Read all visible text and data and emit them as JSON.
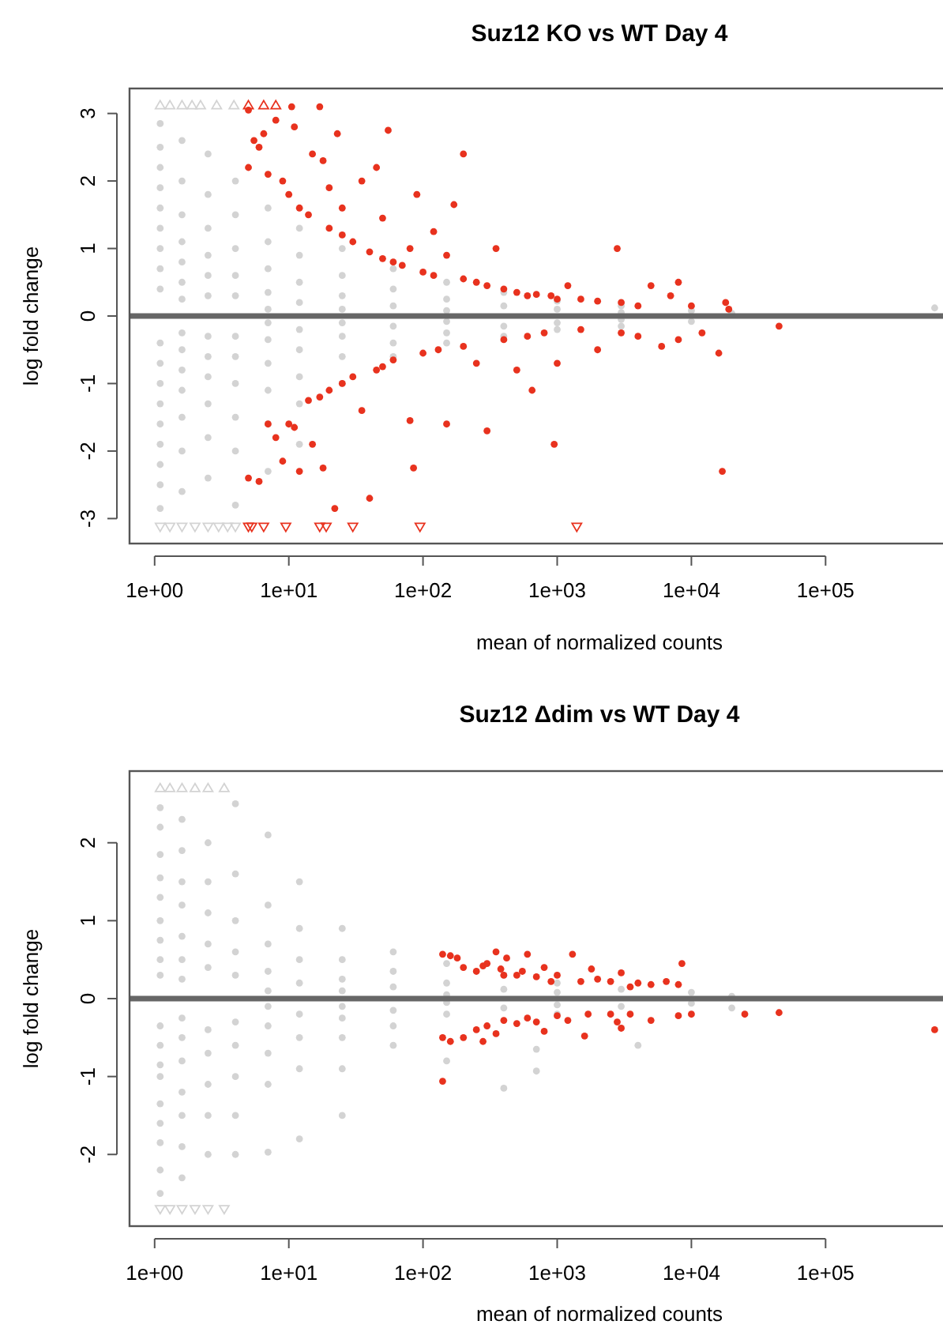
{
  "chart_data": [
    {
      "type": "scatter",
      "title": "Suz12 KO vs WT Day 4",
      "xlabel": "mean of normalized counts",
      "ylabel": "log fold change",
      "log": "x",
      "xlim": [
        0.65,
        750000
      ],
      "xticks": [
        {
          "value": 1,
          "label": "1e+00"
        },
        {
          "value": 10,
          "label": "1e+01"
        },
        {
          "value": 100,
          "label": "1e+02"
        },
        {
          "value": 1000,
          "label": "1e+03"
        },
        {
          "value": 10000,
          "label": "1e+04"
        },
        {
          "value": 100000,
          "label": "1e+05"
        }
      ],
      "ylim": [
        -3.37,
        3.37
      ],
      "yticks": [
        -3,
        -2,
        -1,
        0,
        1,
        2,
        3
      ],
      "marker": "circle",
      "ref_lines": [
        {
          "axis": "y",
          "value": 0,
          "color": "#666666"
        }
      ],
      "series": [
        {
          "color": "#d3d3d3",
          "x": [
            1.1,
            1.1,
            1.1,
            1.1,
            1.1,
            1.1,
            1.1,
            1.1,
            1.1,
            1.1,
            1.1,
            1.1,
            1.1,
            1.1,
            1.1,
            1.1,
            1.1,
            1.1,
            1.6,
            1.6,
            1.6,
            1.6,
            1.6,
            1.6,
            1.6,
            1.6,
            1.6,
            1.6,
            1.6,
            1.6,
            1.6,
            1.6,
            2.5,
            2.5,
            2.5,
            2.5,
            2.5,
            2.5,
            2.5,
            2.5,
            2.5,
            2.5,
            2.5,
            2.5,
            4,
            4,
            4,
            4,
            4,
            4,
            4,
            4,
            4,
            4,
            4,
            7,
            7,
            7,
            7,
            7,
            7,
            7,
            7,
            7,
            7,
            7,
            12,
            12,
            12,
            12,
            12,
            12,
            12,
            12,
            12,
            25,
            25,
            25,
            25,
            25,
            25,
            25,
            25,
            60,
            60,
            60,
            60,
            60,
            60,
            150,
            150,
            150,
            150,
            150,
            150,
            400,
            400,
            400,
            400,
            1000,
            1000,
            1000,
            1000,
            3000,
            3000,
            3000,
            3000,
            10000,
            10000,
            20000,
            650000
          ],
          "values": [
            2.85,
            2.5,
            2.2,
            1.9,
            1.6,
            1.3,
            1.0,
            0.7,
            0.4,
            -0.4,
            -0.7,
            -1.0,
            -1.3,
            -1.6,
            -1.9,
            -2.2,
            -2.5,
            -2.85,
            2.6,
            2.0,
            1.5,
            1.1,
            0.8,
            0.5,
            0.25,
            -0.25,
            -0.5,
            -0.8,
            -1.1,
            -1.5,
            -2.0,
            -2.6,
            2.4,
            1.8,
            1.3,
            0.9,
            0.6,
            0.3,
            -0.3,
            -0.6,
            -0.9,
            -1.3,
            -1.8,
            -2.4,
            2.0,
            1.5,
            1.0,
            0.6,
            0.3,
            -0.3,
            -0.6,
            -1.0,
            -1.5,
            -2.0,
            -2.8,
            1.6,
            1.1,
            0.7,
            0.35,
            0.1,
            -0.1,
            -0.35,
            -0.7,
            -1.1,
            -1.6,
            -2.3,
            1.3,
            0.9,
            0.5,
            0.2,
            -0.2,
            -0.5,
            -0.9,
            -1.3,
            -1.9,
            1.0,
            0.6,
            0.3,
            0.1,
            -0.1,
            -0.3,
            -0.6,
            -1.0,
            0.7,
            0.4,
            0.15,
            -0.15,
            -0.4,
            -0.6,
            0.5,
            0.25,
            0.08,
            -0.08,
            -0.25,
            -0.4,
            0.35,
            0.15,
            -0.15,
            -0.3,
            0.22,
            0.1,
            -0.1,
            -0.2,
            0.15,
            0.05,
            -0.05,
            -0.15,
            0.08,
            -0.08,
            0.04,
            0.12
          ]
        },
        {
          "color": "#d3d3d3",
          "marker": "triangle",
          "x": [
            1.1,
            1.3,
            1.6,
            1.9,
            2.2,
            2.9,
            3.9,
            1.1,
            1.3,
            1.6,
            2,
            2.5,
            3,
            3.5,
            4
          ],
          "values": [
            3.12,
            3.12,
            3.12,
            3.12,
            3.12,
            3.12,
            3.12,
            -3.12,
            -3.12,
            -3.12,
            -3.12,
            -3.12,
            -3.12,
            -3.12,
            -3.12
          ]
        },
        {
          "color": "#e8321e",
          "x": [
            5,
            5.5,
            6,
            6.5,
            7,
            8,
            9,
            10,
            11,
            12,
            14,
            15,
            18,
            20,
            23,
            25,
            30,
            35,
            40,
            45,
            50,
            55,
            60,
            70,
            80,
            90,
            100,
            120,
            150,
            170,
            200,
            200,
            250,
            300,
            350,
            400,
            500,
            600,
            700,
            900,
            1000,
            1200,
            1500,
            2000,
            2800,
            3000,
            4000,
            5000,
            7000,
            8000,
            10000,
            18000,
            25,
            50,
            120,
            20,
            5,
            10.5,
            17,
            5,
            6,
            7,
            8,
            9,
            10,
            11,
            12,
            14,
            15,
            17,
            18,
            20,
            22,
            25,
            30,
            35,
            40,
            45,
            50,
            60,
            80,
            85,
            100,
            130,
            150,
            200,
            250,
            300,
            400,
            500,
            600,
            650,
            800,
            950,
            1000,
            1500,
            2000,
            3000,
            4000,
            6000,
            8000,
            12000,
            16000,
            17000,
            45000,
            19000
          ],
          "values": [
            2.2,
            2.6,
            2.5,
            2.7,
            2.1,
            2.9,
            2.0,
            1.8,
            2.8,
            1.6,
            1.5,
            2.4,
            2.3,
            1.3,
            2.7,
            1.2,
            1.1,
            2.0,
            0.95,
            2.2,
            0.85,
            2.75,
            0.8,
            0.75,
            1.0,
            1.8,
            0.65,
            0.6,
            0.9,
            1.65,
            2.4,
            0.55,
            0.5,
            0.45,
            1.0,
            0.4,
            0.35,
            0.3,
            0.32,
            0.3,
            0.25,
            0.45,
            0.25,
            0.22,
            1.0,
            0.2,
            0.15,
            0.45,
            0.3,
            0.5,
            0.15,
            0.2,
            1.6,
            1.45,
            1.25,
            1.9,
            3.05,
            3.1,
            3.1,
            -2.4,
            -2.45,
            -1.6,
            -1.8,
            -2.15,
            -1.6,
            -1.65,
            -2.3,
            -1.25,
            -1.9,
            -1.2,
            -2.25,
            -1.1,
            -2.85,
            -1.0,
            -0.9,
            -1.4,
            -2.7,
            -0.8,
            -0.75,
            -0.65,
            -1.55,
            -2.25,
            -0.55,
            -0.5,
            -1.6,
            -0.45,
            -0.7,
            -1.7,
            -0.35,
            -0.8,
            -0.3,
            -1.1,
            -0.25,
            -1.9,
            -0.7,
            -0.2,
            -0.5,
            -0.25,
            -0.3,
            -0.45,
            -0.35,
            -0.25,
            -0.55,
            -2.3,
            -0.15,
            0.1
          ]
        },
        {
          "color": "#e8321e",
          "marker": "triangle",
          "x": [
            5,
            6.5,
            8,
            5,
            5.3,
            6.5,
            9.5,
            17,
            19,
            30,
            95,
            1400
          ],
          "values": [
            3.12,
            3.12,
            3.12,
            -3.12,
            -3.12,
            -3.12,
            -3.12,
            -3.12,
            -3.12,
            -3.12,
            -3.12,
            -3.12
          ]
        }
      ]
    },
    {
      "type": "scatter",
      "title": "Suz12 Δdim vs WT Day 4",
      "xlabel": "mean of normalized counts",
      "ylabel": "log fold change",
      "log": "x",
      "xlim": [
        0.65,
        750000
      ],
      "xticks": [
        {
          "value": 1,
          "label": "1e+00"
        },
        {
          "value": 10,
          "label": "1e+01"
        },
        {
          "value": 100,
          "label": "1e+02"
        },
        {
          "value": 1000,
          "label": "1e+03"
        },
        {
          "value": 10000,
          "label": "1e+04"
        },
        {
          "value": 100000,
          "label": "1e+05"
        }
      ],
      "ylim": [
        -2.92,
        2.92
      ],
      "yticks": [
        -2,
        -1,
        0,
        1,
        2
      ],
      "marker": "circle",
      "ref_lines": [
        {
          "axis": "y",
          "value": 0,
          "color": "#666666"
        }
      ],
      "series": [
        {
          "color": "#d3d3d3",
          "x": [
            1.1,
            1.1,
            1.1,
            1.1,
            1.1,
            1.1,
            1.1,
            1.1,
            1.1,
            1.1,
            1.1,
            1.1,
            1.1,
            1.1,
            1.1,
            1.1,
            1.1,
            1.1,
            1.6,
            1.6,
            1.6,
            1.6,
            1.6,
            1.6,
            1.6,
            1.6,
            1.6,
            1.6,
            1.6,
            1.6,
            1.6,
            1.6,
            2.5,
            2.5,
            2.5,
            2.5,
            2.5,
            2.5,
            2.5,
            2.5,
            2.5,
            2.5,
            4,
            4,
            4,
            4,
            4,
            4,
            4,
            4,
            4,
            4,
            7,
            7,
            7,
            7,
            7,
            7,
            7,
            7,
            7,
            7,
            12,
            12,
            12,
            12,
            12,
            12,
            12,
            12,
            25,
            25,
            25,
            25,
            25,
            25,
            25,
            25,
            25,
            60,
            60,
            60,
            60,
            60,
            60,
            150,
            150,
            150,
            150,
            150,
            150,
            400,
            400,
            400,
            400,
            700,
            700,
            1000,
            1000,
            1000,
            1000,
            3000,
            3000,
            4000,
            10000,
            10000,
            20000,
            20000
          ],
          "values": [
            2.45,
            2.2,
            1.85,
            1.55,
            1.3,
            1.0,
            0.75,
            0.5,
            0.3,
            -0.35,
            -0.6,
            -0.85,
            -1.0,
            -1.35,
            -1.6,
            -1.85,
            -2.2,
            -2.5,
            2.3,
            1.9,
            1.5,
            1.2,
            0.8,
            0.5,
            0.25,
            -0.25,
            -0.5,
            -0.8,
            -1.2,
            -1.5,
            -1.9,
            -2.3,
            2.0,
            1.5,
            1.1,
            0.7,
            0.4,
            -0.4,
            -0.7,
            -1.1,
            -1.5,
            -2.0,
            2.5,
            1.6,
            1.0,
            0.6,
            0.3,
            -0.3,
            -0.6,
            -1.0,
            -1.5,
            -2.0,
            2.1,
            1.2,
            0.7,
            0.35,
            0.1,
            -0.1,
            -0.35,
            -0.7,
            -1.1,
            -1.97,
            1.5,
            0.9,
            0.5,
            0.2,
            -0.2,
            -0.5,
            -0.9,
            -1.8,
            0.9,
            0.5,
            0.25,
            0.1,
            -0.1,
            -0.25,
            -0.5,
            -0.9,
            -1.5,
            0.6,
            0.35,
            0.15,
            -0.15,
            -0.35,
            -0.6,
            0.45,
            0.2,
            0.05,
            -0.05,
            -0.2,
            -0.8,
            0.3,
            0.12,
            -0.12,
            -1.15,
            -0.93,
            -0.65,
            0.2,
            0.08,
            -0.08,
            -0.2,
            0.12,
            -0.1,
            -0.6,
            0.08,
            -0.06,
            0.03,
            -0.12
          ]
        },
        {
          "color": "#d3d3d3",
          "marker": "triangle",
          "x": [
            1.1,
            1.3,
            1.6,
            2,
            2.5,
            3.3,
            1.1,
            1.3,
            1.6,
            2,
            2.5,
            3.3
          ],
          "values": [
            2.7,
            2.7,
            2.7,
            2.7,
            2.7,
            2.7,
            -2.7,
            -2.7,
            -2.7,
            -2.7,
            -2.7,
            -2.7
          ]
        },
        {
          "color": "#e8321e",
          "x": [
            140,
            160,
            180,
            200,
            250,
            280,
            300,
            350,
            380,
            400,
            420,
            500,
            550,
            600,
            700,
            800,
            900,
            1000,
            1300,
            1500,
            1800,
            2000,
            2500,
            3000,
            3500,
            4000,
            5000,
            6500,
            8500,
            8000,
            140,
            140,
            160,
            200,
            250,
            280,
            300,
            350,
            400,
            500,
            600,
            700,
            800,
            1000,
            1200,
            1600,
            1700,
            2500,
            2800,
            3000,
            3500,
            5000,
            8000,
            10000,
            25000,
            45000,
            650000
          ],
          "values": [
            0.57,
            0.55,
            0.52,
            0.4,
            0.35,
            0.42,
            0.45,
            0.6,
            0.38,
            0.3,
            0.52,
            0.3,
            0.35,
            0.57,
            0.28,
            0.4,
            0.22,
            0.3,
            0.57,
            0.22,
            0.38,
            0.25,
            0.22,
            0.33,
            0.15,
            0.2,
            0.18,
            0.22,
            0.45,
            0.18,
            -1.06,
            -0.5,
            -0.55,
            -0.5,
            -0.4,
            -0.55,
            -0.35,
            -0.45,
            -0.28,
            -0.32,
            -0.25,
            -0.3,
            -0.42,
            -0.22,
            -0.28,
            -0.48,
            -0.2,
            -0.2,
            -0.3,
            -0.38,
            -0.2,
            -0.28,
            -0.22,
            -0.2,
            -0.2,
            -0.18,
            -0.4
          ]
        }
      ]
    }
  ]
}
